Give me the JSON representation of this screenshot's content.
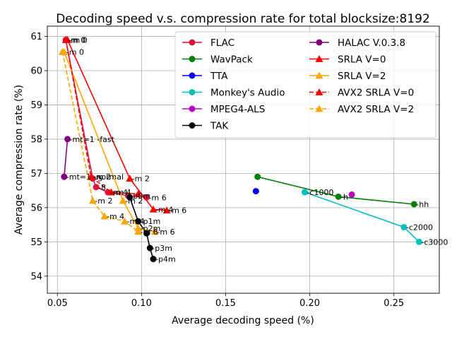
{
  "chart_data": {
    "type": "scatter",
    "title": "Decoding speed v.s. compression rate for total blocksize:8192",
    "xlabel": "Average decoding speed (%)",
    "ylabel": "Average compression rate (%)",
    "xlim": [
      0.044,
      0.277
    ],
    "ylim": [
      53.5,
      61.3
    ],
    "xticks": [
      0.05,
      0.1,
      0.15,
      0.2,
      0.25
    ],
    "xtick_labels": [
      "0.05",
      "0.10",
      "0.15",
      "0.20",
      "0.25"
    ],
    "yticks": [
      54,
      55,
      56,
      57,
      58,
      59,
      60,
      61
    ],
    "ytick_labels": [
      "54",
      "55",
      "56",
      "57",
      "58",
      "59",
      "60",
      "61"
    ],
    "grid": true,
    "legend_position": "top-right",
    "legend_columns": 2,
    "series": [
      {
        "name": "FLAC",
        "color": "#dc143c",
        "marker": "circle",
        "line": "solid",
        "points": [
          [
            0.055,
            60.9
          ],
          [
            0.071,
            56.85
          ],
          [
            0.073,
            56.6
          ],
          [
            0.08,
            56.45
          ],
          [
            0.092,
            56.35
          ],
          [
            0.103,
            56.3
          ]
        ],
        "labels": [
          "-m 0",
          "-5",
          "-8",
          "-m 4",
          "-p0m",
          "-m 6"
        ]
      },
      {
        "name": "WavPack",
        "color": "#008000",
        "marker": "circle",
        "line": "solid",
        "points": [
          [
            0.169,
            56.9
          ],
          [
            0.217,
            56.32
          ],
          [
            0.262,
            56.1
          ]
        ],
        "labels": [
          "",
          "-h",
          "-hh"
        ]
      },
      {
        "name": "TTA",
        "color": "#0000ff",
        "marker": "circle",
        "line": "none",
        "points": [
          [
            0.168,
            56.48
          ]
        ],
        "labels": [
          ""
        ]
      },
      {
        "name": "Monkey's Audio",
        "color": "#00bfbf",
        "marker": "circle",
        "line": "solid",
        "points": [
          [
            0.197,
            56.45
          ],
          [
            0.256,
            55.43
          ],
          [
            0.265,
            55.0
          ]
        ],
        "labels": [
          "-c1000",
          "-c2000",
          "-c3000"
        ]
      },
      {
        "name": "MPEG4-ALS",
        "color": "#bf00bf",
        "marker": "circle",
        "line": "none",
        "points": [
          [
            0.225,
            56.38
          ]
        ],
        "labels": [
          ""
        ]
      },
      {
        "name": "TAK",
        "color": "#000000",
        "marker": "circle",
        "line": "solid",
        "points": [
          [
            0.093,
            56.3
          ],
          [
            0.098,
            55.6
          ],
          [
            0.103,
            55.25
          ],
          [
            0.105,
            54.82
          ],
          [
            0.107,
            54.5
          ]
        ],
        "labels": [
          "",
          "-p1m",
          "",
          "-p3m",
          "-p4m"
        ]
      },
      {
        "name": "HALAC V.0.3.8",
        "color": "#800080",
        "marker": "circle",
        "line": "solid",
        "points": [
          [
            0.054,
            56.9
          ],
          [
            0.056,
            58.0
          ]
        ],
        "labels": [
          "-mt=1 -normal",
          "-mt=1 -fast"
        ]
      },
      {
        "name": "SRLA V=0",
        "color": "#ff0000",
        "marker": "triangle",
        "line": "solid",
        "points": [
          [
            0.056,
            60.9
          ],
          [
            0.093,
            56.85
          ],
          [
            0.107,
            55.95
          ],
          [
            0.115,
            55.92
          ]
        ],
        "labels": [
          "-m 0",
          "-m 2",
          "-m 4",
          "-m 6"
        ]
      },
      {
        "name": "SRLA V=2",
        "color": "#ffa500",
        "marker": "triangle",
        "line": "solid",
        "points": [
          [
            0.054,
            60.55
          ],
          [
            0.089,
            56.2
          ],
          [
            0.098,
            55.4
          ],
          [
            0.108,
            55.3
          ]
        ],
        "labels": [
          "-m 0",
          "-m 2",
          "-p2m",
          "-m 6"
        ]
      },
      {
        "name": "AVX2 SRLA V=0",
        "color": "#ff0000",
        "marker": "triangle",
        "line": "dashed",
        "points": [
          [
            0.055,
            60.9
          ],
          [
            0.07,
            56.9
          ],
          [
            0.082,
            56.45
          ],
          [
            0.098,
            56.4
          ]
        ],
        "labels": [
          "-m 0",
          "-m 2",
          "-m 4",
          ""
        ]
      },
      {
        "name": "AVX2 SRLA V=2",
        "color": "#ffa500",
        "marker": "triangle",
        "line": "dashed",
        "points": [
          [
            0.053,
            60.55
          ],
          [
            0.071,
            56.2
          ],
          [
            0.078,
            55.75
          ],
          [
            0.09,
            55.6
          ],
          [
            0.098,
            55.3
          ]
        ],
        "labels": [
          "",
          "-m 2",
          "-m 4",
          "-m 4",
          "-m 6"
        ]
      }
    ]
  }
}
